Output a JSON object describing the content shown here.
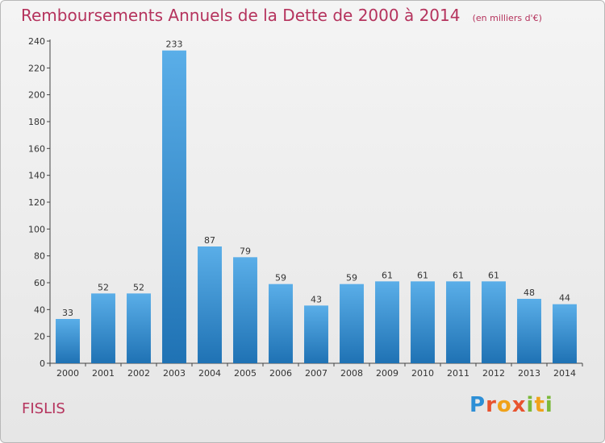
{
  "chart_data": {
    "type": "bar",
    "title": "Remboursements Annuels de la Dette de 2000 à 2014",
    "subtitle": "(en milliers d'€)",
    "categories": [
      "2000",
      "2001",
      "2002",
      "2003",
      "2004",
      "2005",
      "2006",
      "2007",
      "2008",
      "2009",
      "2010",
      "2011",
      "2012",
      "2013",
      "2014"
    ],
    "values": [
      33,
      52,
      52,
      233,
      87,
      79,
      59,
      43,
      59,
      61,
      61,
      61,
      61,
      48,
      44
    ],
    "ylim": [
      0,
      240
    ],
    "yticks": [
      0,
      20,
      40,
      60,
      80,
      100,
      120,
      140,
      160,
      180,
      200,
      220,
      240
    ],
    "grid": false,
    "bar_color_top": "#5aaee8",
    "bar_color_bottom": "#1f72b4"
  },
  "footer": {
    "commune": "FISLIS",
    "logo": [
      "P",
      "r",
      "o",
      "x",
      "i",
      "t",
      "i"
    ]
  }
}
